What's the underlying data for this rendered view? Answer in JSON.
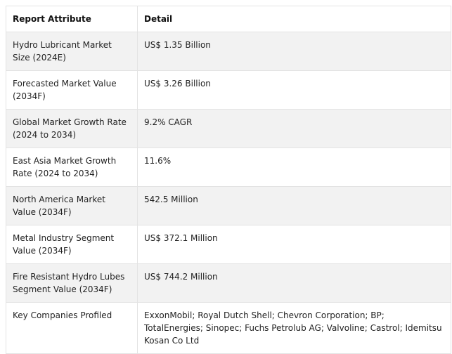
{
  "table": {
    "headers": [
      "Report Attribute",
      "Detail"
    ],
    "rows": [
      [
        "Hydro Lubricant Market Size (2024E)",
        "US$ 1.35 Billion"
      ],
      [
        "Forecasted Market Value (2034F)",
        "US$ 3.26 Billion"
      ],
      [
        "Global Market Growth Rate (2024 to 2034)",
        "9.2% CAGR"
      ],
      [
        "East Asia Market Growth Rate (2024 to 2034)",
        "11.6%"
      ],
      [
        "North America Market Value (2034F)",
        "542.5 Million"
      ],
      [
        "Metal Industry Segment Value (2034F)",
        "US$ 372.1 Million"
      ],
      [
        "Fire Resistant Hydro Lubes Segment Value (2034F)",
        "US$ 744.2 Million"
      ],
      [
        "Key Companies Profiled",
        "ExxonMobil; Royal Dutch Shell; Chevron Corporation; BP; TotalEnergies; Sinopec; Fuchs Petrolub AG; Valvoline; Castrol; Idemitsu Kosan Co Ltd"
      ]
    ]
  }
}
